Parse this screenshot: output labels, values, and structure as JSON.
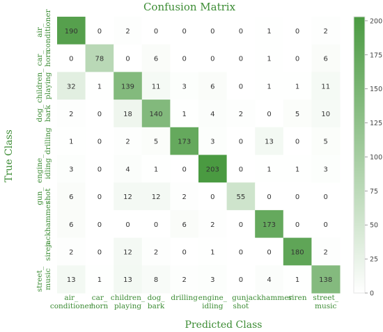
{
  "chart_data": {
    "type": "heatmap",
    "title": "Confusion Matrix",
    "xlabel": "Predicted Class",
    "ylabel": "True Class",
    "x_ticks": [
      [
        "air_",
        "conditioner"
      ],
      [
        "car_",
        "horn"
      ],
      [
        "children_",
        "playing"
      ],
      [
        "dog_",
        "bark"
      ],
      [
        "drilling"
      ],
      [
        "engine_",
        "idling"
      ],
      [
        "gun_",
        "shot"
      ],
      [
        "jackhammer"
      ],
      [
        "siren"
      ],
      [
        "street_",
        "music"
      ]
    ],
    "y_ticks": [
      [
        "air_",
        "conditioner"
      ],
      [
        "car_",
        "horn"
      ],
      [
        "children_",
        "playing"
      ],
      [
        "dog_",
        "bark"
      ],
      [
        "drilling"
      ],
      [
        "engine_",
        "idling"
      ],
      [
        "gun_",
        "shot"
      ],
      [
        "jackhammer"
      ],
      [
        "siren"
      ],
      [
        "street_",
        "music"
      ]
    ],
    "matrix": [
      [
        190,
        0,
        2,
        0,
        0,
        0,
        0,
        1,
        0,
        2
      ],
      [
        0,
        78,
        0,
        6,
        0,
        0,
        0,
        1,
        0,
        6
      ],
      [
        32,
        1,
        139,
        11,
        3,
        6,
        0,
        1,
        1,
        11
      ],
      [
        2,
        0,
        18,
        140,
        1,
        4,
        2,
        0,
        5,
        10
      ],
      [
        1,
        0,
        2,
        5,
        173,
        3,
        0,
        13,
        0,
        5
      ],
      [
        3,
        0,
        4,
        1,
        0,
        203,
        0,
        1,
        1,
        3
      ],
      [
        6,
        0,
        12,
        12,
        2,
        0,
        55,
        0,
        0,
        0
      ],
      [
        6,
        0,
        0,
        0,
        6,
        2,
        0,
        173,
        0,
        0
      ],
      [
        2,
        0,
        12,
        2,
        0,
        1,
        0,
        0,
        180,
        2
      ],
      [
        13,
        1,
        13,
        8,
        2,
        3,
        0,
        4,
        1,
        138
      ]
    ],
    "colorbar": {
      "min": 0,
      "max": 203,
      "ticks": [
        0,
        25,
        50,
        75,
        100,
        125,
        150,
        175,
        200
      ],
      "color_low": "#ffffff",
      "color_high": "#4a9a41"
    },
    "text_color": "#3c8c34",
    "grid": false
  }
}
